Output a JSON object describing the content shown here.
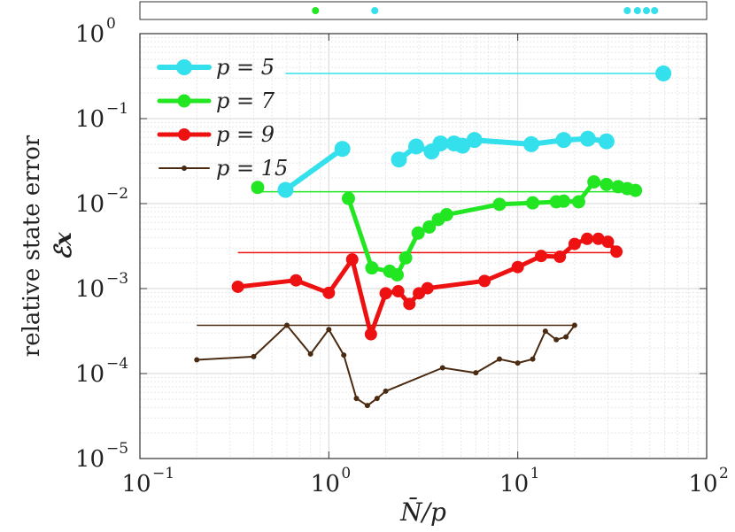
{
  "chart_data": {
    "type": "line",
    "title": "",
    "xlabel": "N̄/p",
    "ylabel_line1": "relative state error",
    "ylabel_line2": "ℰ𝒙",
    "xscale": "log",
    "yscale": "log",
    "xlim": [
      0.1,
      100
    ],
    "ylim": [
      1e-05,
      1
    ],
    "grid": true,
    "legend_position": "top-left",
    "x_ticks": [
      {
        "base": "10",
        "exp": "−1"
      },
      {
        "base": "10",
        "exp": "0"
      },
      {
        "base": "10",
        "exp": "1"
      },
      {
        "base": "10",
        "exp": "2"
      }
    ],
    "y_ticks": [
      {
        "base": "10",
        "exp": "0"
      },
      {
        "base": "10",
        "exp": "−1"
      },
      {
        "base": "10",
        "exp": "−2"
      },
      {
        "base": "10",
        "exp": "−3"
      },
      {
        "base": "10",
        "exp": "−4"
      },
      {
        "base": "10",
        "exp": "−5"
      }
    ],
    "series": [
      {
        "name": "p = 5",
        "color": "#33e0ec",
        "points": [
          [
            0.59,
            0.0145
          ],
          [
            1.18,
            0.044
          ],
          [
            2.35,
            0.033
          ],
          [
            2.9,
            0.047
          ],
          [
            3.5,
            0.041
          ],
          [
            3.9,
            0.051
          ],
          [
            4.6,
            0.051
          ],
          [
            5.1,
            0.048
          ],
          [
            5.9,
            0.056
          ],
          [
            11.8,
            0.05
          ],
          [
            17.5,
            0.056
          ],
          [
            23.5,
            0.058
          ],
          [
            29.5,
            0.054
          ]
        ],
        "segments": [
          [
            0,
            2
          ],
          [
            2,
            13
          ]
        ],
        "reference": {
          "x": [
            0.59,
            59
          ],
          "y": 0.34
        },
        "extra_point": [
          59,
          0.34
        ]
      },
      {
        "name": "p = 7",
        "color": "#22e622",
        "points": [
          [
            0.42,
            0.0155
          ],
          [
            1.27,
            0.0115
          ],
          [
            1.69,
            0.00175
          ],
          [
            2.1,
            0.0016
          ],
          [
            2.3,
            0.00145
          ],
          [
            2.55,
            0.0023
          ],
          [
            2.97,
            0.0045
          ],
          [
            3.4,
            0.0053
          ],
          [
            3.8,
            0.0065
          ],
          [
            4.2,
            0.0074
          ],
          [
            8.0,
            0.0098
          ],
          [
            12.0,
            0.0102
          ],
          [
            16.0,
            0.0105
          ],
          [
            17.5,
            0.0107
          ],
          [
            21.0,
            0.0105
          ],
          [
            25.3,
            0.018
          ],
          [
            29.5,
            0.0168
          ],
          [
            34.0,
            0.0158
          ],
          [
            38.0,
            0.015
          ],
          [
            42.0,
            0.0143
          ]
        ],
        "segments": [
          [
            1,
            20
          ]
        ],
        "reference": {
          "x": [
            0.42,
            42
          ],
          "y": 0.0138
        }
      },
      {
        "name": "p = 9",
        "color": "#ee1111",
        "points": [
          [
            0.33,
            0.00105
          ],
          [
            0.67,
            0.00125
          ],
          [
            1.0,
            0.00089
          ],
          [
            1.33,
            0.0022
          ],
          [
            1.67,
            0.00029
          ],
          [
            2.0,
            0.00088
          ],
          [
            2.33,
            0.00093
          ],
          [
            2.67,
            0.00066
          ],
          [
            3.0,
            0.00088
          ],
          [
            3.33,
            0.00101
          ],
          [
            6.67,
            0.00123
          ],
          [
            10.0,
            0.00179
          ],
          [
            13.3,
            0.00242
          ],
          [
            16.7,
            0.00237
          ],
          [
            20.0,
            0.00335
          ],
          [
            23.3,
            0.00385
          ],
          [
            26.7,
            0.00385
          ],
          [
            30.0,
            0.00355
          ],
          [
            33.3,
            0.00272
          ]
        ],
        "segments": [
          [
            0,
            19
          ]
        ],
        "reference": {
          "x": [
            0.33,
            33.3
          ],
          "y": 0.00265
        }
      },
      {
        "name": "p = 15",
        "color": "#4a2a10",
        "points": [
          [
            0.2,
            0.000145
          ],
          [
            0.4,
            0.000158
          ],
          [
            0.6,
            0.00037
          ],
          [
            0.8,
            0.00017
          ],
          [
            1.0,
            0.00033
          ],
          [
            1.2,
            0.000165
          ],
          [
            1.4,
            5.1e-05
          ],
          [
            1.6,
            4.2e-05
          ],
          [
            1.8,
            5.1e-05
          ],
          [
            2.0,
            6.2e-05
          ],
          [
            4.0,
            0.000117
          ],
          [
            6.0,
            0.000102
          ],
          [
            8.0,
            0.000148
          ],
          [
            10.0,
            0.000133
          ],
          [
            12.0,
            0.000148
          ],
          [
            14.0,
            0.000315
          ],
          [
            16.0,
            0.00025
          ],
          [
            18.0,
            0.00027
          ],
          [
            20.0,
            0.00037
          ]
        ],
        "segments": [
          [
            0,
            19
          ]
        ],
        "reference": {
          "x": [
            0.2,
            20
          ],
          "y": 0.00037
        }
      }
    ],
    "top_strip": [
      {
        "x": 0.85,
        "color": "#22e622"
      },
      {
        "x": 1.75,
        "color": "#33e0ec"
      },
      {
        "x": 38,
        "color": "#33e0ec"
      },
      {
        "x": 43,
        "color": "#33e0ec"
      },
      {
        "x": 48,
        "color": "#33e0ec"
      },
      {
        "x": 53,
        "color": "#33e0ec"
      }
    ]
  }
}
